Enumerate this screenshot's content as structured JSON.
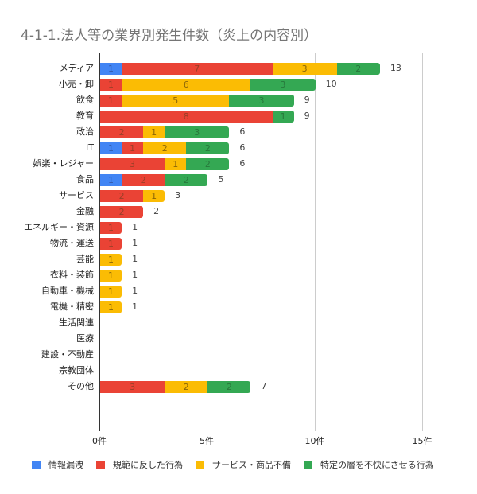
{
  "title": "4-1-1.法人等の業界別発生件数（炎上の内容別）",
  "colors": {
    "情報漏洩": "#4285F4",
    "規範に反した行為": "#EA4335",
    "サービス・商品不備": "#FBBC04",
    "特定の層を不快にさせる行為": "#34A853"
  },
  "chart_data": {
    "type": "bar",
    "orientation": "horizontal",
    "stacked": true,
    "title": "4-1-1.法人等の業界別発生件数（炎上の内容別）",
    "xlabel": "",
    "ylabel": "",
    "xlim": [
      0,
      15
    ],
    "x_ticks": [
      "0件",
      "5件",
      "10件",
      "15件"
    ],
    "grid": true,
    "legend_position": "bottom",
    "categories": [
      "メディア",
      "小売・卸",
      "飲食",
      "教育",
      "政治",
      "IT",
      "娯楽・レジャー",
      "食品",
      "サービス",
      "金融",
      "エネルギー・資源",
      "物流・運送",
      "芸能",
      "衣料・装飾",
      "自動車・機械",
      "電機・精密",
      "生活関連",
      "医療",
      "建設・不動産",
      "宗教団体",
      "その他"
    ],
    "series": [
      {
        "name": "情報漏洩",
        "color": "#4285F4",
        "values": [
          1,
          0,
          0,
          0,
          0,
          1,
          0,
          1,
          0,
          0,
          0,
          0,
          0,
          0,
          0,
          0,
          0,
          0,
          0,
          0,
          0
        ]
      },
      {
        "name": "規範に反した行為",
        "color": "#EA4335",
        "values": [
          7,
          1,
          1,
          8,
          2,
          1,
          3,
          2,
          2,
          2,
          1,
          1,
          0,
          0,
          0,
          0,
          0,
          0,
          0,
          0,
          3
        ]
      },
      {
        "name": "サービス・商品不備",
        "color": "#FBBC04",
        "values": [
          3,
          6,
          5,
          0,
          1,
          2,
          1,
          0,
          1,
          0,
          0,
          0,
          1,
          1,
          1,
          1,
          0,
          0,
          0,
          0,
          2
        ]
      },
      {
        "name": "特定の層を不快にさせる行為",
        "color": "#34A853",
        "values": [
          2,
          3,
          3,
          1,
          3,
          2,
          2,
          2,
          0,
          0,
          0,
          0,
          0,
          0,
          0,
          0,
          0,
          0,
          0,
          0,
          2
        ]
      }
    ],
    "totals": [
      13,
      10,
      9,
      9,
      6,
      6,
      6,
      5,
      3,
      2,
      1,
      1,
      1,
      1,
      1,
      1,
      null,
      null,
      null,
      null,
      7
    ]
  }
}
